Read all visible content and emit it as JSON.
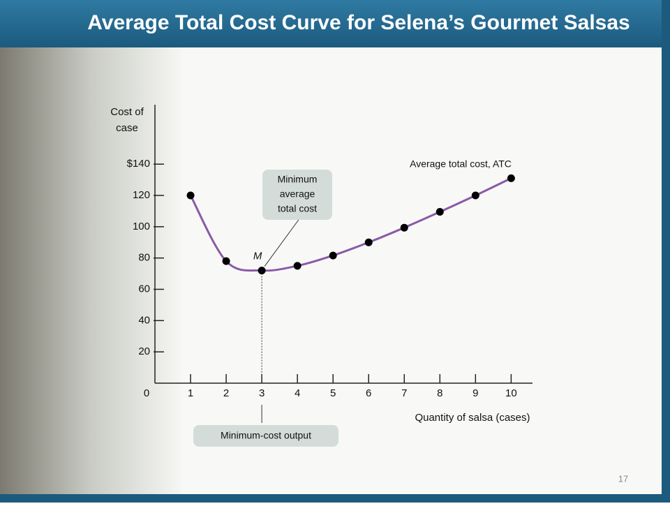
{
  "slide_title": "Average Total Cost Curve for Selena’s Gourmet Salsas",
  "page_number": "17",
  "chart_data": {
    "type": "line",
    "y_label": [
      "Cost of",
      "case"
    ],
    "x_label": "Quantity of salsa (cases)",
    "x": [
      1,
      2,
      3,
      4,
      5,
      6,
      7,
      8,
      9,
      10
    ],
    "series": [
      {
        "name": "Average total cost, ATC",
        "color": "#8a5aa8",
        "values": [
          120,
          78,
          72,
          75,
          81.6,
          90,
          99.4,
          109.5,
          120,
          131
        ]
      }
    ],
    "xlim": [
      0,
      10.6
    ],
    "xticks": [
      0,
      1,
      2,
      3,
      4,
      5,
      6,
      7,
      8,
      9,
      10
    ],
    "ylim": [
      0,
      178
    ],
    "yticks": [
      20,
      40,
      60,
      80,
      100,
      120,
      {
        "value": 140,
        "label": "$140"
      }
    ],
    "point_label": "M",
    "min_atc_note": [
      "Minimum",
      "average",
      "total cost"
    ],
    "min_output_note": "Minimum-cost output"
  }
}
